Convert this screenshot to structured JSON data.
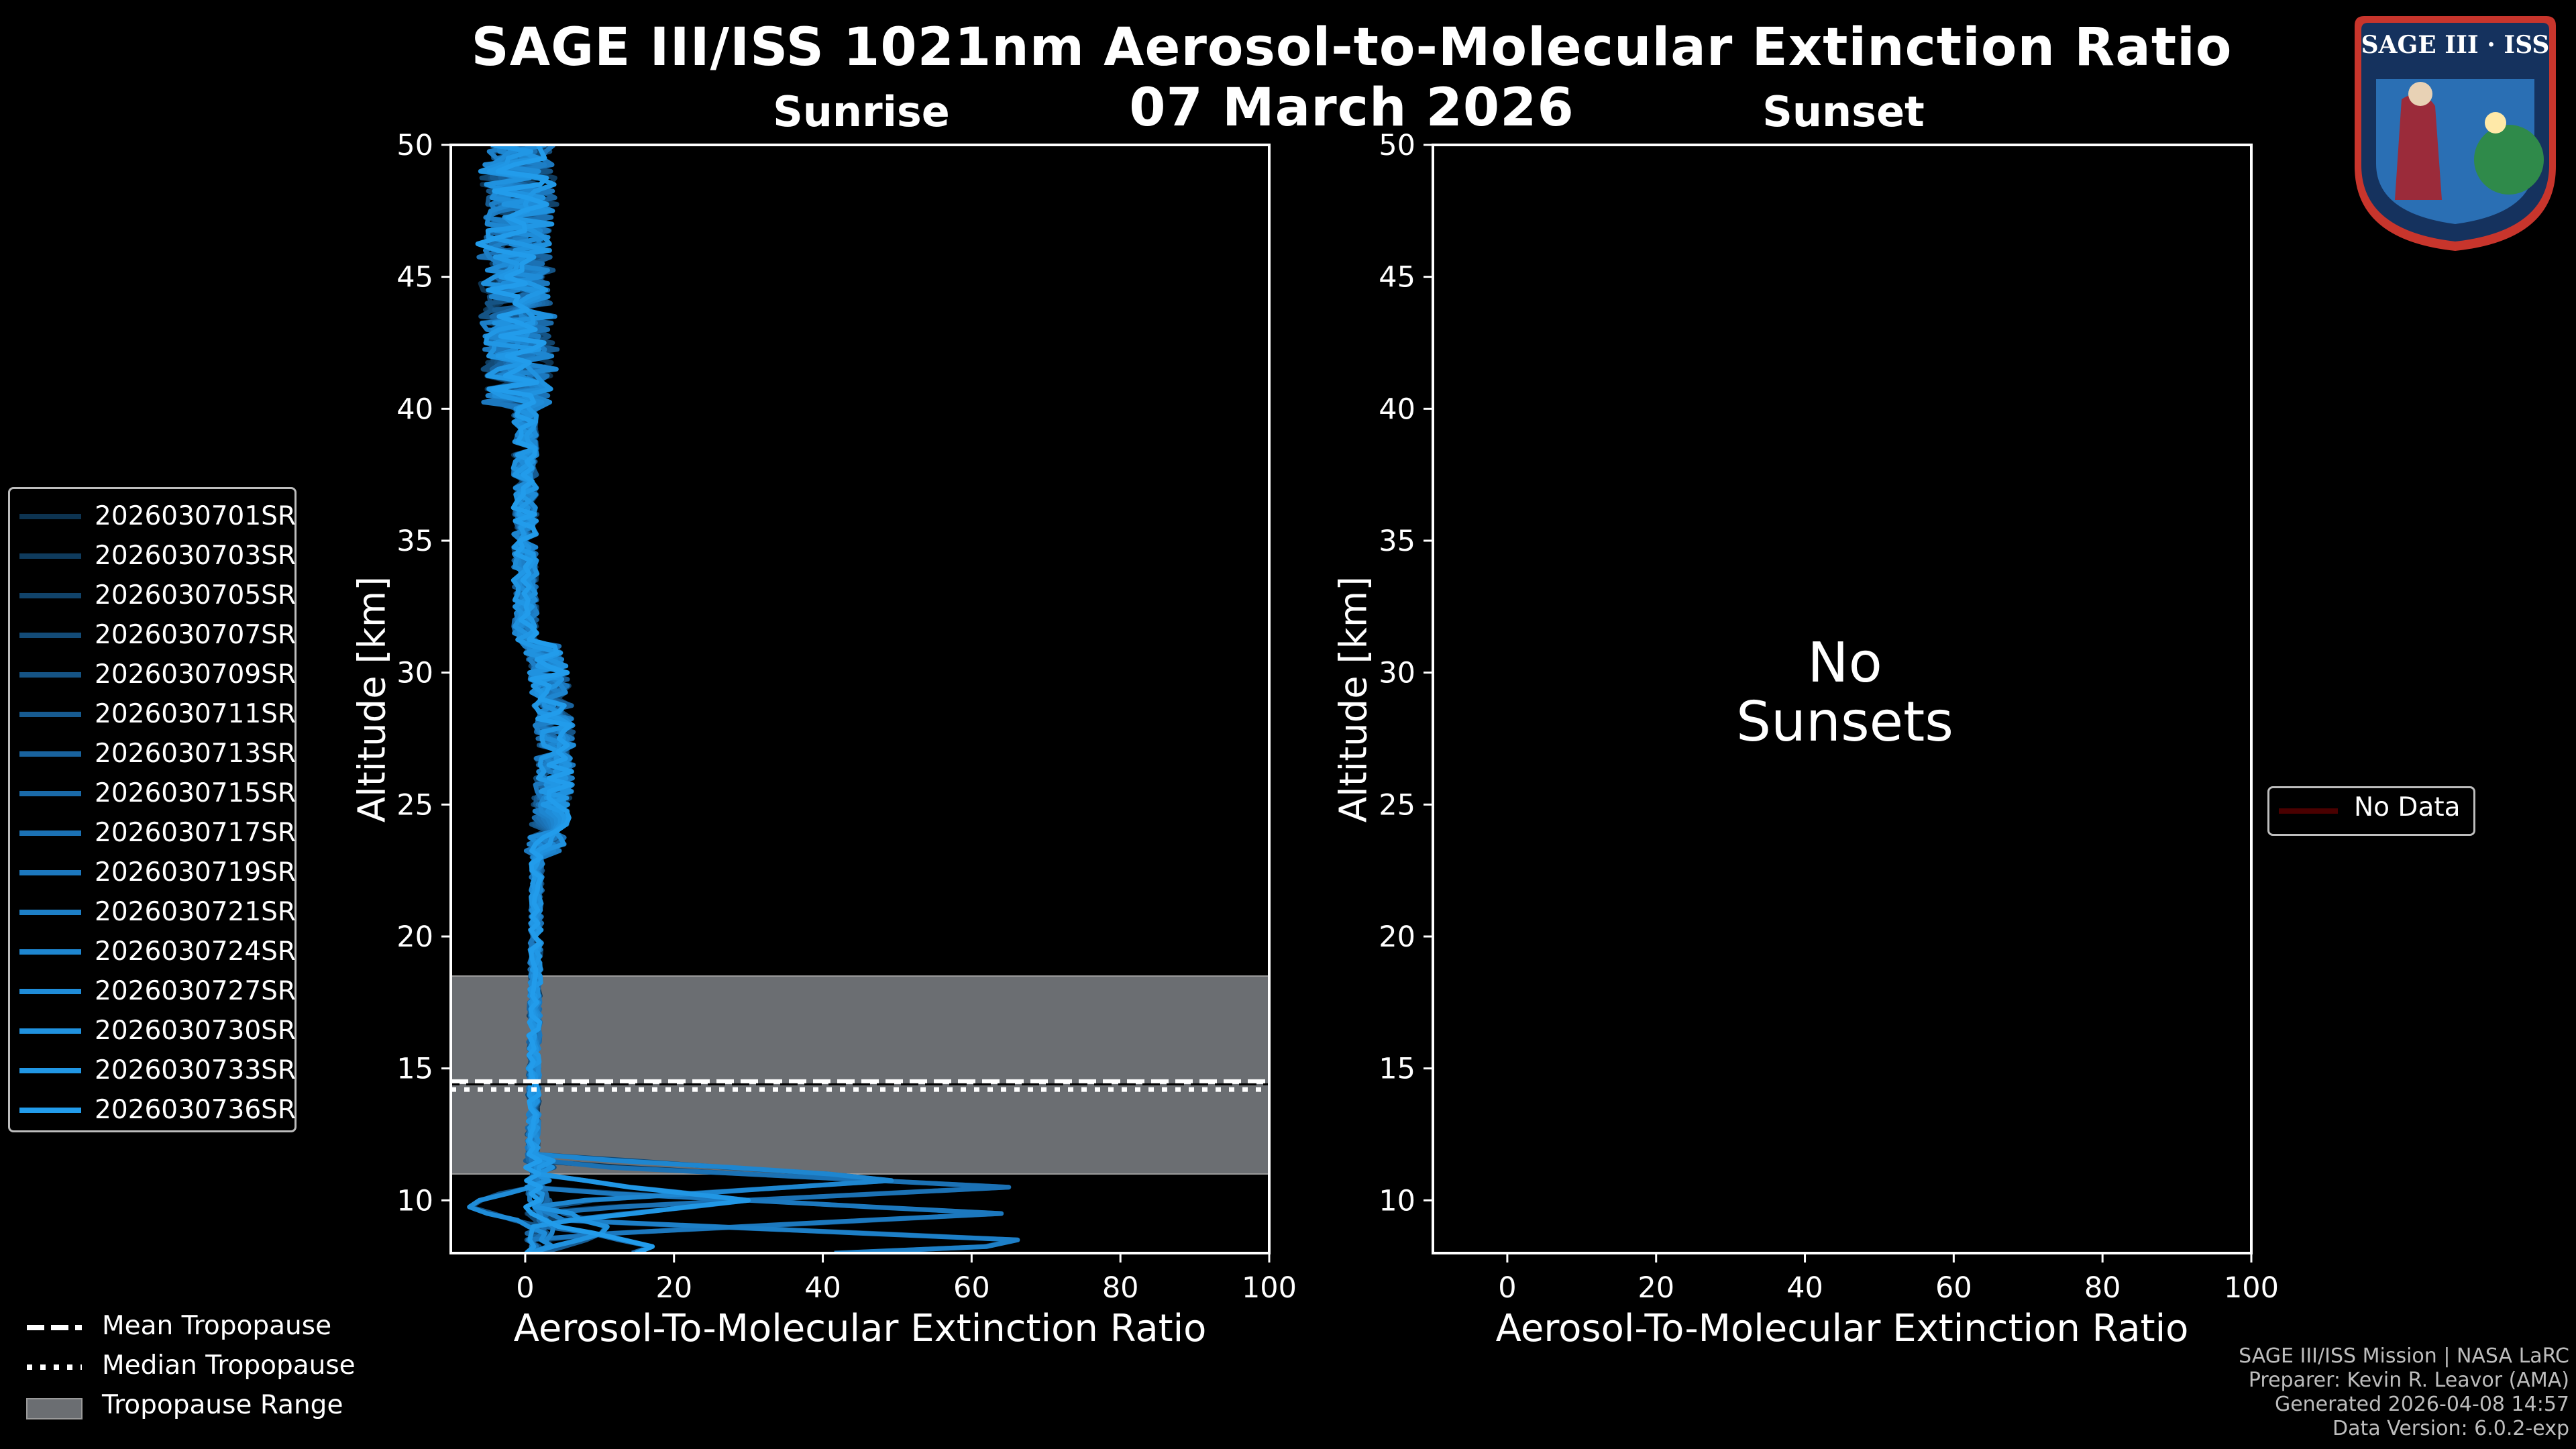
{
  "title": {
    "line1": "SAGE III/ISS 1021nm Aerosol-to-Molecular Extinction Ratio",
    "line2": "07 March 2026"
  },
  "logo": {
    "text": "SAGE III · ISS"
  },
  "chart_data": [
    {
      "type": "line",
      "panel": "Sunrise",
      "title": "Sunrise",
      "xlabel": "Aerosol-To-Molecular Extinction Ratio",
      "ylabel": "Altitude [km]",
      "xlim": [
        -10,
        100
      ],
      "ylim": [
        8,
        50
      ],
      "xticks": [
        0,
        20,
        40,
        60,
        80,
        100
      ],
      "yticks": [
        10,
        15,
        20,
        25,
        30,
        35,
        40,
        45,
        50
      ],
      "tropopause": {
        "range": [
          11.0,
          18.5
        ],
        "mean": 14.5,
        "median": 14.2
      },
      "series": [
        {
          "name": "2026030701SR",
          "color": "#0d3350"
        },
        {
          "name": "2026030703SR",
          "color": "#0f3b5d"
        },
        {
          "name": "2026030705SR",
          "color": "#11436a"
        },
        {
          "name": "2026030707SR",
          "color": "#134b77"
        },
        {
          "name": "2026030709SR",
          "color": "#155384"
        },
        {
          "name": "2026030711SR",
          "color": "#175b91"
        },
        {
          "name": "2026030713SR",
          "color": "#19639e"
        },
        {
          "name": "2026030715SR",
          "color": "#1a6aa9"
        },
        {
          "name": "2026030717SR",
          "color": "#1b71b4"
        },
        {
          "name": "2026030719SR",
          "color": "#1c78be"
        },
        {
          "name": "2026030721SR",
          "color": "#1d7fc7"
        },
        {
          "name": "2026030724SR",
          "color": "#1e86d0"
        },
        {
          "name": "2026030727SR",
          "color": "#1f8cd8"
        },
        {
          "name": "2026030730SR",
          "color": "#2092df"
        },
        {
          "name": "2026030733SR",
          "color": "#2197e5"
        },
        {
          "name": "2026030736SR",
          "color": "#229ceb"
        }
      ]
    },
    {
      "type": "line",
      "panel": "Sunset",
      "title": "Sunset",
      "xlabel": "Aerosol-To-Molecular Extinction Ratio",
      "ylabel": "Altitude [km]",
      "xlim": [
        -10,
        100
      ],
      "ylim": [
        8,
        50
      ],
      "xticks": [
        0,
        20,
        40,
        60,
        80,
        100
      ],
      "yticks": [
        10,
        15,
        20,
        25,
        30,
        35,
        40,
        45,
        50
      ],
      "message": "No\nSunsets",
      "series": [
        {
          "name": "No Data",
          "color": "#4a0000"
        }
      ]
    }
  ],
  "legend_bottom": [
    {
      "label": "Mean Tropopause",
      "style": "dashed",
      "color": "#ffffff"
    },
    {
      "label": "Median Tropopause",
      "style": "dotted",
      "color": "#ffffff"
    },
    {
      "label": "Tropopause Range",
      "style": "patch",
      "color": "#6b6e72"
    }
  ],
  "footer": [
    "SAGE III/ISS Mission | NASA LaRC",
    "Preparer: Kevin R. Leavor (AMA)",
    "Generated 2026-04-08 14:57",
    "Data Version: 6.0.2-exp"
  ]
}
